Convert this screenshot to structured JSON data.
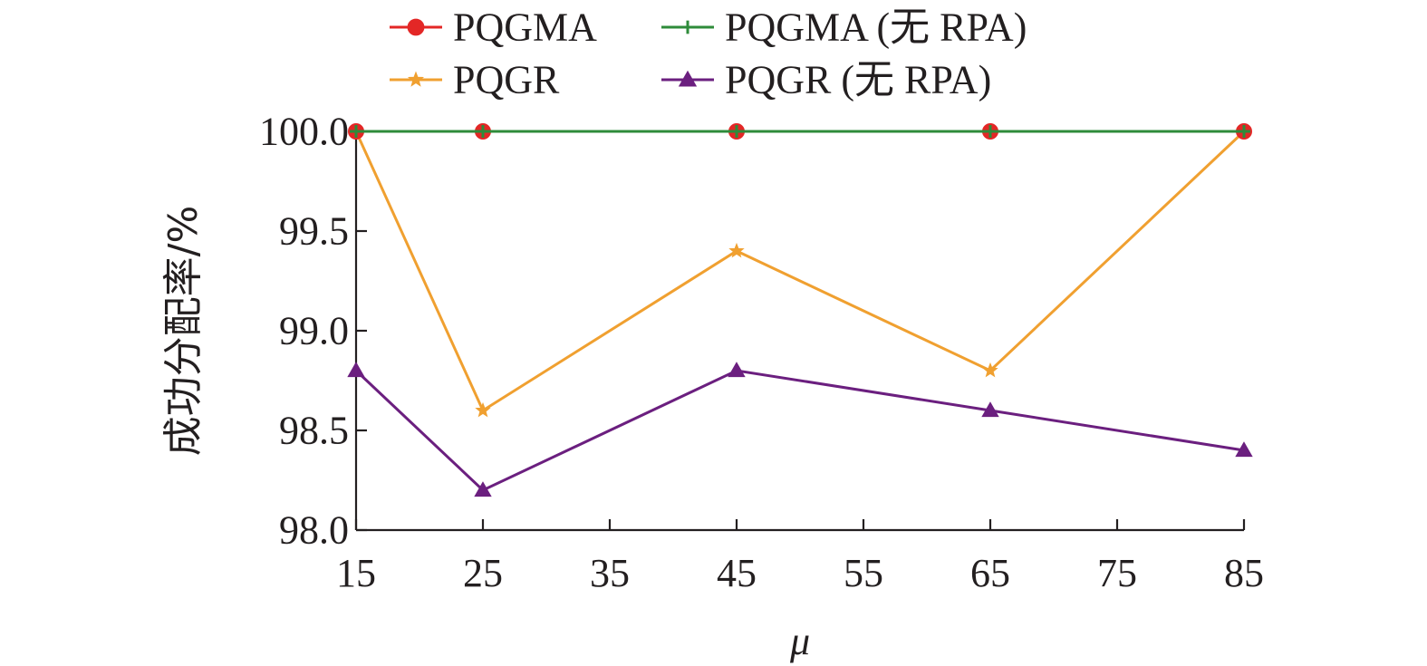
{
  "chart_data": {
    "type": "line",
    "title": "",
    "xlabel": "μ",
    "ylabel": "成功分配率/%",
    "x": [
      15,
      25,
      45,
      65,
      85
    ],
    "xlim": [
      15,
      85
    ],
    "ylim": [
      98.0,
      100.0
    ],
    "xticks": [
      15,
      25,
      35,
      45,
      55,
      65,
      75,
      85
    ],
    "xtick_labels": [
      "15",
      "25",
      "35",
      "45",
      "55",
      "65",
      "75",
      "85"
    ],
    "yticks": [
      98.0,
      98.5,
      99.0,
      99.5,
      100.0
    ],
    "ytick_labels": [
      "98.0",
      "98.5",
      "99.0",
      "99.5",
      "100.0"
    ],
    "grid": false,
    "legend_position": "top",
    "series": [
      {
        "name": "PQGMA",
        "color": "#e32726",
        "marker": "circle",
        "values": [
          100.0,
          100.0,
          100.0,
          100.0,
          100.0
        ]
      },
      {
        "name": "PQGMA (无 RPA)",
        "color": "#2e8b3a",
        "marker": "plus",
        "values": [
          100.0,
          100.0,
          100.0,
          100.0,
          100.0
        ]
      },
      {
        "name": "PQGR",
        "color": "#f0a030",
        "marker": "star",
        "values": [
          100.0,
          98.6,
          99.4,
          98.8,
          100.0
        ]
      },
      {
        "name": "PQGR (无 RPA)",
        "color": "#6b1f7f",
        "marker": "triangle",
        "values": [
          98.8,
          98.2,
          98.8,
          98.6,
          98.4
        ]
      }
    ]
  }
}
